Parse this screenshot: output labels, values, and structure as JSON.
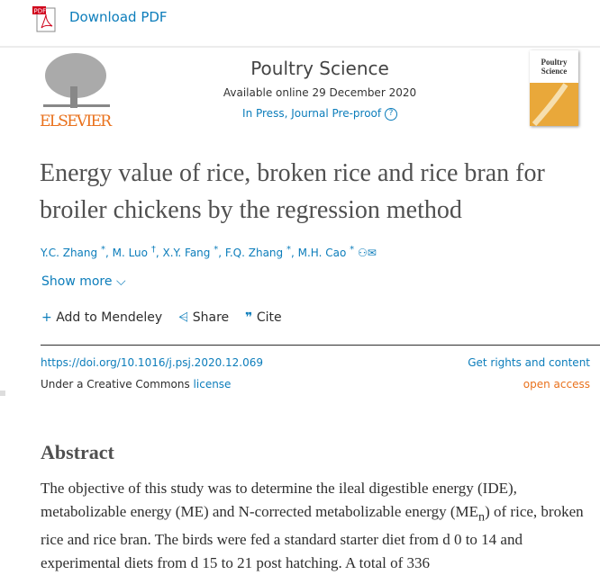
{
  "toolbar": {
    "download_label": "Download PDF",
    "pdf_icon_text": "PDF"
  },
  "header": {
    "publisher": "ELSEVIER",
    "journal": "Poultry Science",
    "available": "Available online 29 December 2020",
    "status": "In Press, Journal Pre-proof",
    "help": "?",
    "cover_text": "Poultry Science"
  },
  "article": {
    "title": "Energy value of rice, broken rice and rice bran for broiler chickens by the regression method",
    "authors": [
      {
        "name": "Y.C. Zhang",
        "mark": "*"
      },
      {
        "name": "M. Luo",
        "mark": "†"
      },
      {
        "name": "X.Y. Fang",
        "mark": "*"
      },
      {
        "name": "F.Q. Zhang",
        "mark": "*"
      },
      {
        "name": "M.H. Cao",
        "mark": "*"
      }
    ],
    "show_more": "Show more",
    "actions": {
      "mendeley": "Add to Mendeley",
      "share": "Share",
      "cite": "Cite"
    },
    "doi": "https://doi.org/10.1016/j.psj.2020.12.069",
    "rights": "Get rights and content",
    "license_prefix": "Under a Creative Commons ",
    "license_link": "license",
    "open_access": "open access"
  },
  "abstract": {
    "heading": "Abstract",
    "text_1": "The objective of this study was to determine the ileal digestible energy (IDE), metabolizable energy (ME) and N-corrected metabolizable energy (ME",
    "sub": "n",
    "text_2": ") of rice, broken rice and rice bran. The birds were fed a standard starter diet from d 0 to 14 and experimental diets from d 15 to 21 post hatching. A total of 336"
  }
}
